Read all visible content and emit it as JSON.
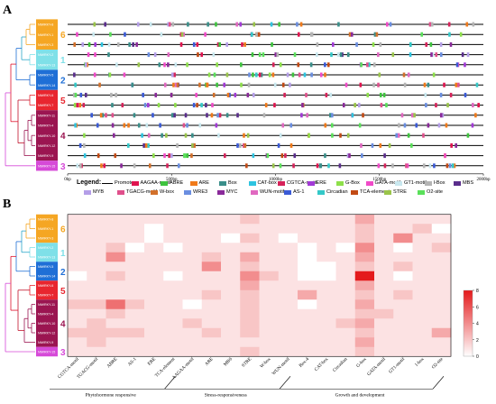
{
  "panels": {
    "a": "A",
    "b": "B"
  },
  "genes": [
    "NtWRKY-8",
    "NtWRKY-1",
    "NtWRKY-3",
    "NtWRKY-2",
    "NtWRKY-13",
    "NtWRKY-5",
    "NtWRKY-14",
    "NtWRKY-6",
    "NtWRKY-7",
    "NtWRKY-11",
    "NtWRKY-4",
    "NtWRKY-10",
    "NtWRKY-12",
    "NtWRKY-9",
    "NtWRKY-15"
  ],
  "groups": [
    {
      "label": "6",
      "color": "#f5a623",
      "start": 0,
      "count": 3
    },
    {
      "label": "1",
      "color": "#7fe0e8",
      "start": 3,
      "count": 2
    },
    {
      "label": "2",
      "color": "#1f6fd6",
      "start": 5,
      "count": 2
    },
    {
      "label": "5",
      "color": "#e8262f",
      "start": 7,
      "count": 2
    },
    {
      "label": "4",
      "color": "#9b1551",
      "start": 9,
      "count": 5
    },
    {
      "label": "3",
      "color": "#d64ad8",
      "start": 14,
      "count": 1
    }
  ],
  "axis_a": {
    "ticks": [
      "0bp",
      "500bp",
      "1000bp",
      "1500bp",
      "2000bp"
    ]
  },
  "legend": {
    "title": "Legend:",
    "items": [
      {
        "name": "Promoter",
        "color": "#000000",
        "type": "line"
      },
      {
        "name": "AAGAA-motif",
        "color": "#e0144f"
      },
      {
        "name": "ABRE",
        "color": "#3ec43e"
      },
      {
        "name": "ARE",
        "color": "#f07a1a"
      },
      {
        "name": "Box",
        "color": "#3a8f8a"
      },
      {
        "name": "CAT-box",
        "color": "#2ec4e0"
      },
      {
        "name": "CGTCA-motif",
        "color": "#d6235a"
      },
      {
        "name": "ERE",
        "color": "#a23ad6"
      },
      {
        "name": "G-Box",
        "color": "#8ee04a"
      },
      {
        "name": "GATA-motif",
        "color": "#f04ac8"
      },
      {
        "name": "GT1-motif",
        "color": "#c9e8ef"
      },
      {
        "name": "I-Box",
        "color": "#b4b4b4"
      },
      {
        "name": "MBS",
        "color": "#5a2e8c"
      },
      {
        "name": "MYB",
        "color": "#b49ee8"
      },
      {
        "name": "TGACG-motif",
        "color": "#e0508c"
      },
      {
        "name": "W-box",
        "color": "#d2702a"
      },
      {
        "name": "WRE3",
        "color": "#6a8ee0"
      },
      {
        "name": "MYC",
        "color": "#8a2a9a"
      },
      {
        "name": "WUN-motif",
        "color": "#e068c0"
      },
      {
        "name": "AS-1",
        "color": "#3a5ad6"
      },
      {
        "name": "Circadian",
        "color": "#34c8c8"
      },
      {
        "name": "TCA-element",
        "color": "#c24a14"
      },
      {
        "name": "STRE",
        "color": "#9ac44a"
      },
      {
        "name": "O2-site",
        "color": "#5ae05a"
      }
    ]
  },
  "heatmap": {
    "columns": [
      "CGTCA-motif",
      "TGACG-motif",
      "ABRE",
      "AS-1",
      "ERE",
      "TCA-element",
      "AAGAA-motif",
      "ARE",
      "MBS",
      "STRE",
      "W-box",
      "WUN-motif",
      "Box-4",
      "CAT-box",
      "Circadian",
      "G-box",
      "GATA-motif",
      "GT1-motif",
      "I-box",
      "O2-site"
    ],
    "categories": [
      {
        "label": "Phytohormone responsive",
        "start": 0,
        "end": 5
      },
      {
        "label": "Stress-responsiveness",
        "start": 6,
        "end": 11
      },
      {
        "label": "Growth and development",
        "start": 12,
        "end": 19
      }
    ],
    "colorbar": {
      "min": 0,
      "max": 8,
      "ticks": [
        "0",
        "2",
        "4",
        "6",
        "8"
      ],
      "low_color": "#ffffff",
      "high_color": "#e41a1c"
    },
    "values": [
      [
        1,
        1,
        1,
        1,
        1,
        1,
        1,
        1,
        1,
        2,
        1,
        1,
        1,
        1,
        1,
        3,
        1,
        1,
        1,
        1
      ],
      [
        1,
        1,
        1,
        1,
        0,
        1,
        1,
        1,
        1,
        1,
        1,
        1,
        1,
        1,
        1,
        2,
        1,
        1,
        2,
        0
      ],
      [
        1,
        1,
        1,
        1,
        0,
        1,
        1,
        1,
        0,
        2,
        1,
        0,
        1,
        1,
        1,
        2,
        1,
        4,
        1,
        1
      ],
      [
        1,
        1,
        2,
        0,
        1,
        0,
        1,
        1,
        1,
        1,
        1,
        1,
        0,
        1,
        0,
        4,
        1,
        0,
        1,
        2
      ],
      [
        1,
        1,
        4,
        1,
        1,
        1,
        1,
        2,
        1,
        3,
        1,
        1,
        0,
        1,
        1,
        3,
        1,
        1,
        1,
        1
      ],
      [
        1,
        1,
        1,
        1,
        1,
        1,
        1,
        4,
        1,
        2,
        1,
        1,
        0,
        0,
        1,
        2,
        1,
        2,
        1,
        1
      ],
      [
        0,
        1,
        2,
        1,
        1,
        0,
        1,
        1,
        1,
        4,
        2,
        1,
        0,
        0,
        1,
        8,
        1,
        0,
        1,
        1
      ],
      [
        1,
        1,
        1,
        1,
        1,
        1,
        1,
        1,
        1,
        3,
        1,
        1,
        1,
        1,
        1,
        3,
        1,
        1,
        1,
        1
      ],
      [
        1,
        1,
        1,
        1,
        1,
        1,
        1,
        2,
        1,
        2,
        1,
        1,
        3,
        1,
        1,
        2,
        1,
        2,
        1,
        1
      ],
      [
        2,
        2,
        5,
        2,
        1,
        1,
        0,
        1,
        1,
        2,
        1,
        1,
        0,
        1,
        1,
        3,
        1,
        1,
        1,
        1
      ],
      [
        1,
        1,
        2,
        1,
        1,
        1,
        1,
        1,
        1,
        2,
        1,
        1,
        1,
        1,
        1,
        2,
        2,
        1,
        1,
        1
      ],
      [
        1,
        2,
        1,
        1,
        1,
        1,
        2,
        1,
        1,
        2,
        1,
        1,
        1,
        1,
        2,
        3,
        1,
        1,
        1,
        1
      ],
      [
        2,
        2,
        2,
        2,
        1,
        1,
        1,
        2,
        1,
        2,
        1,
        1,
        1,
        1,
        1,
        2,
        1,
        1,
        1,
        3
      ],
      [
        1,
        2,
        1,
        1,
        1,
        1,
        1,
        1,
        1,
        1,
        1,
        1,
        1,
        1,
        1,
        3,
        1,
        1,
        1,
        1
      ],
      [
        1,
        1,
        1,
        1,
        1,
        1,
        1,
        1,
        1,
        2,
        1,
        1,
        1,
        1,
        1,
        2,
        1,
        1,
        1,
        1
      ]
    ]
  }
}
